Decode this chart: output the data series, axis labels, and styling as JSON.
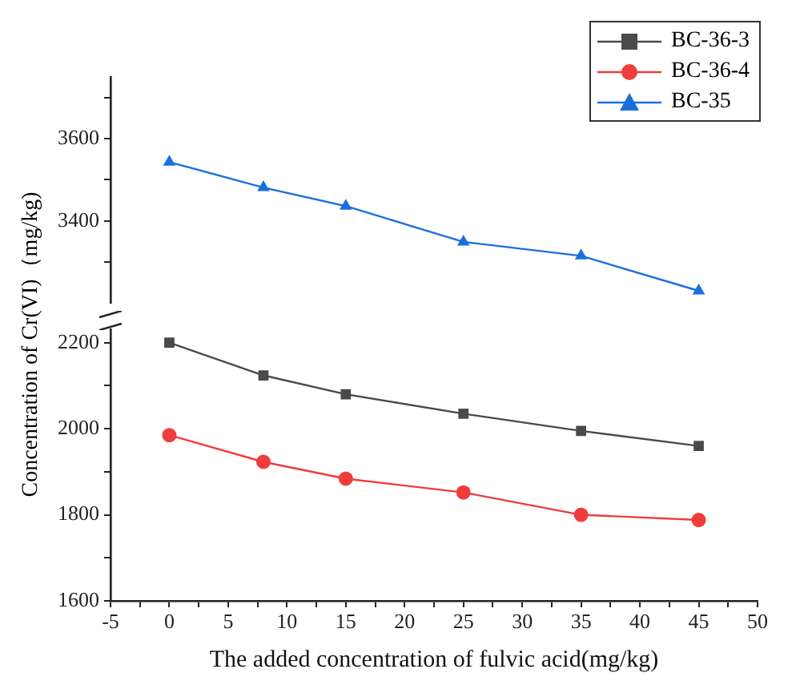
{
  "chart_data": [
    {
      "type": "line",
      "x": [
        0,
        8,
        15,
        25,
        35,
        45
      ],
      "xlim": [
        -5,
        50
      ],
      "ylim": [
        3200,
        3750
      ],
      "yticks": [
        {
          "value": 3300,
          "label": null
        },
        3400,
        {
          "value": 3500,
          "label": null
        },
        3600,
        {
          "value": 3700,
          "label": null
        }
      ],
      "tick_labels": "y",
      "grid": false,
      "legend": "top right",
      "ylabel": "Concentration of Cr(VI)（mg/kg)",
      "series": [
        {
          "name": "BC-35",
          "color": "#1a6fe0",
          "marker": "triangle",
          "values": [
            3543,
            3481,
            3436,
            3349,
            3315,
            3230
          ]
        }
      ]
    },
    {
      "type": "line",
      "x": [
        0,
        8,
        15,
        25,
        35,
        45
      ],
      "xlim": [
        -5,
        50
      ],
      "xticks": [
        -5,
        {
          "value": -2.5,
          "label": null
        },
        0,
        {
          "value": 2.5,
          "label": null
        },
        5,
        {
          "value": 7.5,
          "label": null
        },
        10,
        {
          "value": 12.5,
          "label": null
        },
        15,
        {
          "value": 17.5,
          "label": null
        },
        20,
        {
          "value": 22.5,
          "label": null
        },
        25,
        {
          "value": 27.5,
          "label": null
        },
        30,
        {
          "value": 32.5,
          "label": null
        },
        35,
        {
          "value": 37.5,
          "label": null
        },
        40,
        {
          "value": 42.5,
          "label": null
        },
        45,
        {
          "value": 47.5,
          "label": null
        },
        50
      ],
      "ylim": [
        1600,
        2230
      ],
      "yticks": [
        1600,
        {
          "value": 1700,
          "label": null
        },
        1800,
        {
          "value": 1900,
          "label": null
        },
        2000,
        {
          "value": 2100,
          "label": null
        },
        2200
      ],
      "grid": false,
      "legend": "top right",
      "xlabel": "The added concentration of fulvic acid(mg/kg)",
      "series": [
        {
          "name": "BC-36-3",
          "color": "#4a4a4a",
          "marker": "square",
          "values": [
            2200,
            2124,
            2080,
            2035,
            1995,
            1960
          ]
        },
        {
          "name": "BC-36-4",
          "color": "#f03c3c",
          "marker": "circle",
          "values": [
            1985,
            1923,
            1884,
            1852,
            1800,
            1788
          ]
        }
      ]
    }
  ]
}
